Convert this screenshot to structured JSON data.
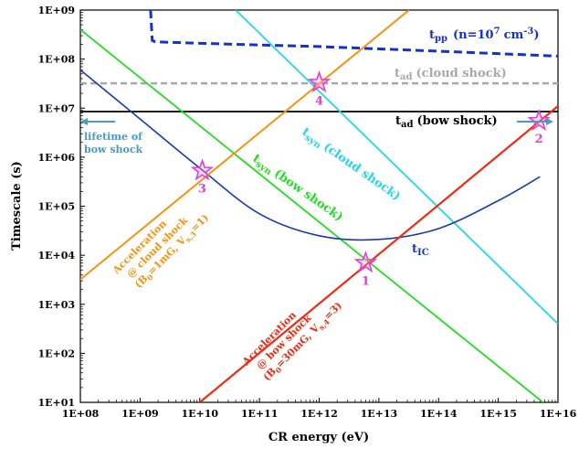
{
  "chart_data": {
    "type": "line",
    "xlabel": "CR energy (eV)",
    "ylabel": "Timescale (s)",
    "xscale": "log",
    "yscale": "log",
    "xlim": [
      100000000.0,
      1e+16
    ],
    "ylim": [
      10.0,
      1000000000.0
    ],
    "x_ticks": [
      "1E+08",
      "1E+09",
      "1E+10",
      "1E+11",
      "1E+12",
      "1E+13",
      "1E+14",
      "1E+15",
      "1E+16"
    ],
    "y_ticks": [
      "1E+01",
      "1E+02",
      "1E+03",
      "1E+04",
      "1E+05",
      "1E+06",
      "1E+07",
      "1E+08",
      "1E+09"
    ],
    "grid": false,
    "legend": "none",
    "colors": {
      "t_pp": "#1530d0",
      "t_ad_cloud": "#a8a8a8",
      "t_ad_bow": "#000000",
      "t_syn_cloud": "#22d8e6",
      "t_syn_bow": "#22dd22",
      "t_ic": "#1a3ab0",
      "acc_cloud": "#f5930f",
      "acc_bow": "#ee2b12",
      "lifetime": "#4a9ac8",
      "star": "#e040d0"
    },
    "series": [
      {
        "key": "t_pp",
        "x": [
          1500000000.0,
          1600000000.0,
          1800000000.0,
          10000000000.0,
          1000000000000.0,
          100000000000000.0,
          1e+16
        ],
        "y": [
          1000000000.0,
          240000000.0,
          225000000.0,
          210000000.0,
          180000000.0,
          145000000.0,
          115000000.0
        ]
      },
      {
        "key": "t_ad_cloud",
        "x": [
          100000000.0,
          1e+16
        ],
        "y": [
          32000000.0,
          32000000.0
        ]
      },
      {
        "key": "t_ad_bow",
        "x": [
          100000000.0,
          1e+16
        ],
        "y": [
          8500000.0,
          8500000.0
        ]
      },
      {
        "key": "t_syn_cloud",
        "x": [
          40000000000.0,
          1e+16
        ],
        "y": [
          1000000000.0,
          400.0
        ]
      },
      {
        "key": "t_syn_bow",
        "x": [
          100000000.0,
          5600000000000000.0
        ],
        "y": [
          400000000.0,
          10.0
        ]
      },
      {
        "key": "t_ic",
        "x": [
          100000000.0,
          1000000000.0,
          10000000000.0,
          100000000000.0,
          1000000000000.0,
          10000000000000.0,
          100000000000000.0,
          1000000000000000.0,
          5000000000000000.0
        ],
        "y": [
          60000000.0,
          6000000.0,
          600000.0,
          70000.0,
          25000.0,
          21000.0,
          35000.0,
          130000.0,
          400000.0
        ]
      },
      {
        "key": "acc_cloud",
        "x": [
          100000000.0,
          32000000000000.0
        ],
        "y": [
          3200.0,
          1000000000.0
        ]
      },
      {
        "key": "acc_bow",
        "x": [
          10000000000.0,
          1e+16
        ],
        "y": [
          10.0,
          11000000.0
        ]
      }
    ],
    "stars": [
      {
        "label": "1",
        "x": 6000000000000.0,
        "y": 7000.0
      },
      {
        "label": "2",
        "x": 4800000000000000.0,
        "y": 5500000.0
      },
      {
        "label": "3",
        "x": 11000000000.0,
        "y": 530000.0
      },
      {
        "label": "4",
        "x": 1000000000000.0,
        "y": 33000000.0
      }
    ],
    "labels": {
      "t_pp": "t",
      "t_pp_sub": "pp",
      "t_pp_tail": "(n=10",
      "t_pp_exp": "7",
      "t_pp_unit": "cm",
      "t_pp_unit_exp": "-3",
      "t_pp_close": ")",
      "t_ad_cloud": "t",
      "t_ad_cloud_sub": "ad",
      "t_ad_cloud_tail": "(cloud shock)",
      "t_ad_bow": "t",
      "t_ad_bow_sub": "ad",
      "t_ad_bow_tail": "(bow shock)",
      "t_syn_cloud": "t",
      "t_syn_cloud_sub": "syn",
      "t_syn_cloud_tail": "(cloud shock)",
      "t_syn_bow": "t",
      "t_syn_bow_sub": "syn",
      "t_syn_bow_tail": "(bow shock)",
      "t_ic": "t",
      "t_ic_sub": "IC",
      "lifetime_1": "lifetime of",
      "lifetime_2": "bow shock",
      "acc_cloud_1": "Acceleration",
      "acc_cloud_2": "@ cloud shock",
      "acc_cloud_3a": "(B",
      "acc_cloud_3b": "0",
      "acc_cloud_3c": "=1mG, V",
      "acc_cloud_3d": "s,3",
      "acc_cloud_3e": "=1)",
      "acc_bow_1": "Acceleration",
      "acc_bow_2": "@ bow shock",
      "acc_bow_3a": "(B",
      "acc_bow_3b": "0",
      "acc_bow_3c": "=30mG, V",
      "acc_bow_3d": "s,4",
      "acc_bow_3e": "=3)"
    }
  }
}
